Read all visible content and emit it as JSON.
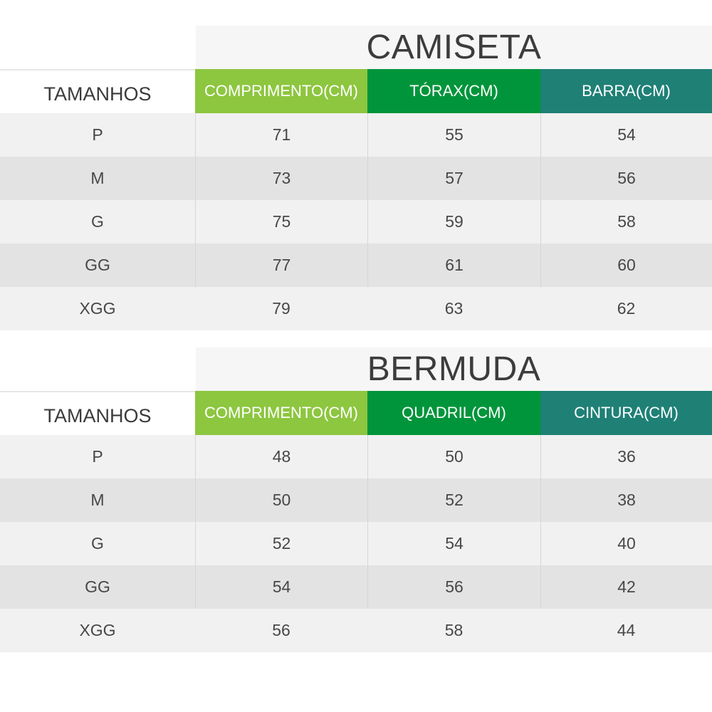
{
  "tables": [
    {
      "title": "CAMISETA",
      "headers": [
        "TAMANHOS",
        "COMPRIMENTO(CM)",
        "TÓRAX(CM)",
        "BARRA(CM)"
      ],
      "rows": [
        [
          "P",
          "71",
          "55",
          "54"
        ],
        [
          "M",
          "73",
          "57",
          "56"
        ],
        [
          "G",
          "75",
          "59",
          "58"
        ],
        [
          "GG",
          "77",
          "61",
          "60"
        ],
        [
          "XGG",
          "79",
          "63",
          "62"
        ]
      ]
    },
    {
      "title": "BERMUDA",
      "headers": [
        "TAMANHOS",
        "COMPRIMENTO(CM)",
        "QUADRIL(CM)",
        "CINTURA(CM)"
      ],
      "rows": [
        [
          "P",
          "48",
          "50",
          "36"
        ],
        [
          "M",
          "50",
          "52",
          "38"
        ],
        [
          "G",
          "52",
          "54",
          "40"
        ],
        [
          "GG",
          "54",
          "56",
          "42"
        ],
        [
          "XGG",
          "56",
          "58",
          "44"
        ]
      ]
    }
  ],
  "colors": {
    "header_comprimento": "#8dc63f",
    "header_second": "#00953b",
    "header_third": "#1f8076",
    "row_light": "#f1f1f1",
    "row_dark": "#e3e3e3"
  }
}
